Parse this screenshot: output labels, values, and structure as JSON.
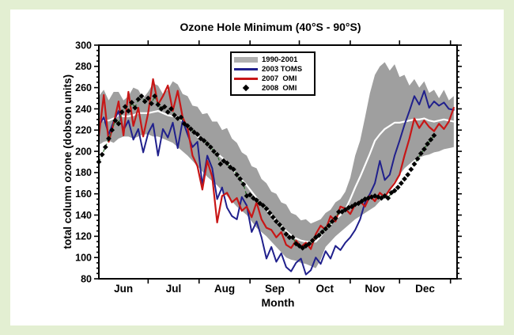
{
  "page": {
    "background_color": "#e3efd2",
    "panel_color": "#ffffff",
    "frame_color": "#000000"
  },
  "chart_data": {
    "type": "line",
    "title": "Ozone Hole Minimum (40°S - 90°S)",
    "xlabel": "Month",
    "ylabel": "total column ozone (dobson units)",
    "ylim": [
      80,
      300
    ],
    "y_major_step": 20,
    "y_minor_step": 5,
    "grid": false,
    "legend_position": "upper-center-inside",
    "x_unit": "days from Jun 1",
    "x_domain": [
      0,
      218
    ],
    "month_ticks": {
      "labels": [
        "Jun",
        "Jul",
        "Aug",
        "Sep",
        "Oct",
        "Nov",
        "Dec"
      ],
      "month_start_days": [
        0,
        30,
        61,
        92,
        122,
        153,
        183,
        214
      ]
    },
    "series": [
      {
        "name": "1990-2001",
        "data_name": "band-1990-2001",
        "type": "band",
        "color": "#9f9f9f",
        "step_days": 3,
        "top": [
          252,
          258,
          248,
          256,
          256,
          248,
          252,
          260,
          258,
          250,
          256,
          264,
          262,
          254,
          258,
          266,
          263,
          254,
          252,
          243,
          242,
          235,
          236,
          228,
          228,
          220,
          222,
          212,
          208,
          199,
          196,
          186,
          184,
          174,
          170,
          162,
          160,
          152,
          150,
          142,
          140,
          135,
          136,
          132,
          134,
          136,
          142,
          145,
          152,
          155,
          162,
          175,
          196,
          210,
          232,
          255,
          272,
          280,
          284,
          276,
          282,
          270,
          272,
          262,
          268,
          260,
          266,
          255,
          258,
          250,
          258,
          248,
          252
        ],
        "bottom": [
          206,
          209,
          210,
          208,
          212,
          214,
          214,
          212,
          214,
          216,
          216,
          214,
          214,
          212,
          210,
          208,
          204,
          200,
          196,
          191,
          186,
          181,
          176,
          172,
          168,
          163,
          158,
          153,
          148,
          144,
          140,
          134,
          128,
          124,
          120,
          115,
          110,
          105,
          100,
          98,
          97,
          95,
          94,
          92,
          90,
          98,
          110,
          115,
          120,
          124,
          128,
          132,
          136,
          139,
          142,
          145,
          148,
          153,
          158,
          165,
          172,
          178,
          184,
          188,
          192,
          194,
          196,
          197,
          199,
          200,
          202,
          203,
          204
        ]
      },
      {
        "name": "1990-2001 mean",
        "data_name": "mean-line-1990-2001",
        "type": "line",
        "color": "#ffffff",
        "width": 2.2,
        "step_days": 3,
        "values": [
          229,
          229,
          229,
          231,
          234,
          233,
          233,
          234,
          236,
          236,
          236,
          237,
          238,
          236,
          234,
          233,
          233,
          228,
          224,
          219,
          214,
          210,
          206,
          202,
          198,
          194,
          190,
          184,
          178,
          173,
          168,
          162,
          156,
          150,
          145,
          140,
          135,
          130,
          125,
          121,
          118,
          116,
          115,
          115,
          115,
          120,
          126,
          131,
          136,
          140,
          145,
          155,
          166,
          176,
          187,
          198,
          210,
          216,
          221,
          224,
          227,
          227,
          228,
          229,
          230,
          230,
          231,
          229,
          228,
          229,
          230,
          229,
          228
        ]
      },
      {
        "name": "2003 TOMS",
        "data_name": "line-2003-toms",
        "type": "line",
        "color": "#20208c",
        "width": 2,
        "step_days": 3,
        "values": [
          224,
          232,
          216,
          228,
          238,
          220,
          229,
          211,
          221,
          199,
          217,
          226,
          196,
          221,
          213,
          227,
          203,
          229,
          216,
          204,
          209,
          168,
          196,
          184,
          155,
          166,
          147,
          139,
          136,
          157,
          149,
          124,
          134,
          119,
          99,
          110,
          96,
          104,
          91,
          87,
          95,
          99,
          84,
          88,
          100,
          94,
          106,
          99,
          111,
          107,
          114,
          119,
          126,
          136,
          152,
          160,
          170,
          191,
          173,
          178,
          196,
          210,
          225,
          238,
          252,
          244,
          257,
          241,
          247,
          243,
          246,
          240,
          239
        ]
      },
      {
        "name": "2007 OMI",
        "data_name": "line-2007-omi",
        "type": "line",
        "color": "#c81616",
        "width": 2.2,
        "step_days": 3,
        "values": [
          214,
          253,
          209,
          226,
          247,
          215,
          256,
          224,
          241,
          214,
          236,
          268,
          244,
          252,
          262,
          238,
          257,
          232,
          222,
          196,
          186,
          164,
          191,
          176,
          133,
          158,
          161,
          152,
          156,
          144,
          148,
          138,
          152,
          136,
          128,
          126,
          119,
          124,
          112,
          109,
          116,
          110,
          114,
          108,
          122,
          130,
          126,
          139,
          134,
          148,
          146,
          141,
          150,
          153,
          148,
          158,
          153,
          161,
          157,
          164,
          170,
          178,
          196,
          212,
          231,
          222,
          229,
          223,
          219,
          226,
          221,
          228,
          241
        ]
      },
      {
        "name": "2008 OMI",
        "data_name": "points-2008-omi",
        "type": "scatter",
        "color": "#000000",
        "connector_color": "#2e6b2e",
        "connector_style": "dashed",
        "step_days": 2,
        "values": [
          190,
          197,
          204,
          212,
          220,
          229,
          226,
          237,
          242,
          238,
          246,
          241,
          249,
          252,
          247,
          250,
          245,
          252,
          244,
          240,
          242,
          237,
          240,
          234,
          231,
          232,
          226,
          224,
          221,
          218,
          216,
          212,
          210,
          207,
          204,
          200,
          197,
          188,
          191,
          189,
          185,
          183,
          178,
          174,
          169,
          158,
          159,
          156,
          154,
          151,
          149,
          146,
          142,
          138,
          134,
          131,
          127,
          122,
          119,
          119,
          113,
          111,
          109,
          111,
          113,
          116,
          119,
          121,
          124,
          127,
          130,
          134,
          137,
          143,
          143,
          145,
          147,
          148,
          150,
          151,
          153,
          155,
          156,
          157,
          158,
          157,
          156,
          158,
          156,
          161,
          163,
          166,
          170,
          174,
          178,
          183,
          188,
          193,
          198,
          202,
          207,
          211,
          215
        ]
      }
    ]
  },
  "legend": {
    "items": [
      {
        "label": "1990-2001",
        "swatch": "band",
        "color": "#b0b0b0"
      },
      {
        "label": "2003 TOMS",
        "swatch": "line",
        "color": "#20208c"
      },
      {
        "label": "2007  OMI",
        "swatch": "line",
        "color": "#c81616"
      },
      {
        "label": "2008  OMI",
        "swatch": "diamond",
        "color": "#000000"
      }
    ]
  }
}
